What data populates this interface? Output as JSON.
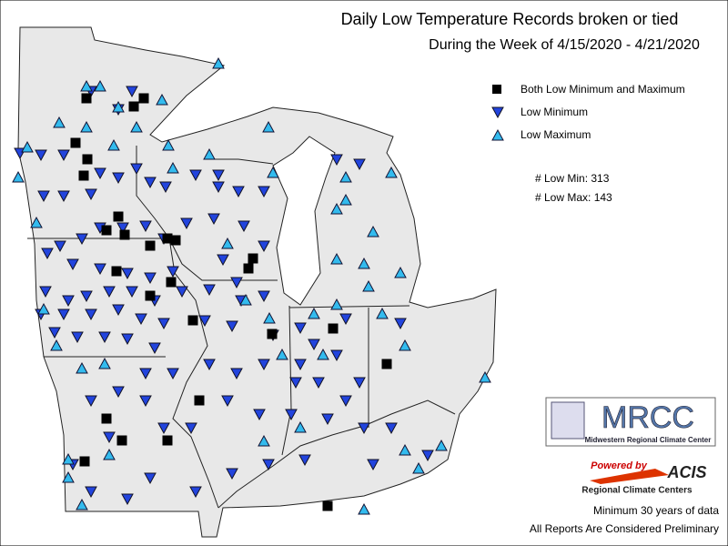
{
  "header": {
    "title": "Daily Low Temperature Records broken or tied",
    "subtitle": "During the Week of 4/15/2020 - 4/21/2020"
  },
  "legend": {
    "items": [
      "Both Low Minimum and Maximum",
      "Low Minimum",
      "Low Maximum"
    ]
  },
  "stats": [
    "# Low Min: 313",
    "# Low Max: 143"
  ],
  "logos": {
    "mrcc": "MRCC",
    "mrcc_name": "Midwestern Regional Climate Center",
    "powered_by": "Powered by",
    "acis": "ACIS",
    "rcc": "Regional Climate Centers"
  },
  "footer": [
    "Minimum 30 years of data",
    "All Reports Are Considered Preliminary"
  ]
}
